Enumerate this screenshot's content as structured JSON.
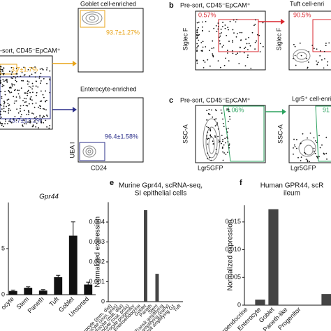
{
  "flow": {
    "a_presort_title": "-sort, CD45⁻EpCAM⁺",
    "a_presort_goblet_pct": "3.7±1.7%",
    "a_presort_entero_pct": "43.7±13.2%",
    "goblet_title": "Goblet cell-enriched",
    "goblet_pct": "93.7±1.27%",
    "entero_title": "Enterocyte-enriched",
    "entero_pct": "96.4±1.58%",
    "entero_ylabel": "UEA I",
    "entero_xlabel": "CD24",
    "b_label": "b",
    "b_title": "Pre-sort, CD45⁻EpCAM⁺",
    "b_pct": "0.57%",
    "b_ylabel": "Siglec F",
    "tuft_title": "Tuft cell-enri",
    "tuft_pct": "90.5%",
    "tuft_ylabel": "Siglec F",
    "c_label": "c",
    "c_title": "Pre-sort, CD45⁻EpCAM⁺",
    "c_pct": "4.06%",
    "c_ylabel": "SSC-A",
    "c_xlabel": "Lgr5GFP",
    "lgr5_title": "Lgr5⁺ cell-enri",
    "lgr5_pct": "91",
    "lgr5_ylabel": "SSC-A",
    "lgr5_xlabel": "Lgr5GFP"
  },
  "chart_data": [
    {
      "type": "bar",
      "title": [
        "Gpr44"
      ],
      "categories": [
        "ocyte",
        "Stem",
        "Paneth",
        "Tuft",
        "Goblet",
        "Unsorted"
      ],
      "values": [
        0.4,
        0.75,
        0.45,
        1.9,
        6.4,
        1.1
      ],
      "errors": [
        0.1,
        0.1,
        0.1,
        0.2,
        1.5,
        0.25
      ],
      "color": "#111111",
      "ylim": [
        0,
        10
      ],
      "yticks": [
        0,
        5
      ]
    },
    {
      "type": "bar",
      "label": "e",
      "title": [
        "Murine Gpr44, scRNA-seq,",
        "SI epithelial cells"
      ],
      "ylabel": "Normalized expression",
      "categories": [
        "Enterocyte (imm. dist)",
        "Enterocyte (imm. prox)",
        "Enterocyte (mat. dist)",
        "Enterocyte (mat. prox)",
        "Enterocyte progenitor",
        "Enteroendocrine",
        "Goblet",
        "Paneth",
        "Stem",
        "Transit amplifying",
        "Transit amplifying (early)",
        "Transit amplifying G1",
        "Tuft"
      ],
      "values": [
        0,
        0,
        0,
        0,
        0,
        0,
        0.0046,
        0,
        0.0014,
        0,
        0,
        0,
        0
      ],
      "color": "#444444",
      "ylim": [
        0,
        0.005
      ],
      "yticks": [
        0,
        0.001,
        0.002,
        0.003,
        0.004
      ]
    },
    {
      "type": "bar",
      "label": "f",
      "title": [
        "Human GPR44, scR",
        "ileum"
      ],
      "ylabel": "Normalized expression",
      "categories": [
        "Enteroendocrine",
        "Enterocyte",
        "Goblet",
        "Paneth-like",
        "Progenitor",
        null,
        null
      ],
      "values": [
        0,
        0.001,
        0.0173,
        0,
        0,
        0,
        0.002
      ],
      "color": "#444444",
      "ylim": [
        0,
        0.018
      ],
      "yticks": [
        0,
        0.005,
        {
          "value": 0.01,
          "label": "0.010"
        },
        0.015
      ]
    }
  ]
}
